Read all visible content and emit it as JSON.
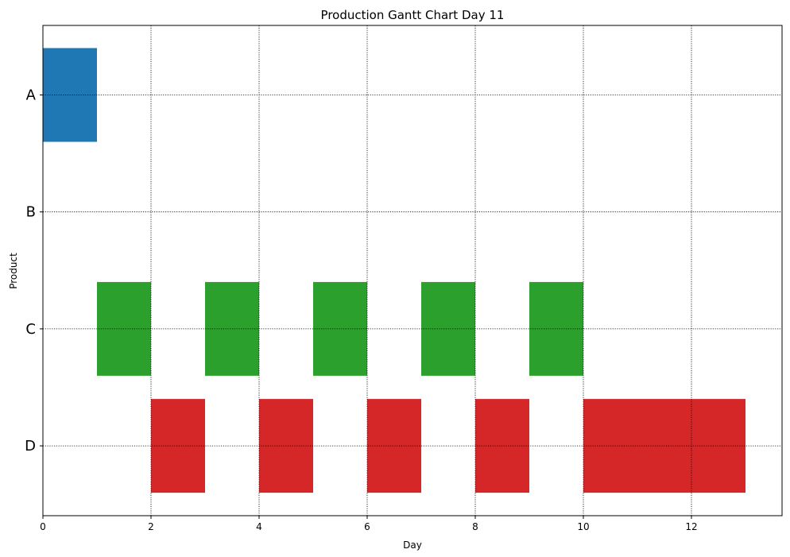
{
  "chart_data": {
    "type": "gantt",
    "title": "Production Gantt Chart Day 11",
    "xlabel": "Day",
    "ylabel": "Product",
    "xlim": [
      0,
      13.65
    ],
    "xticks": [
      0,
      2,
      4,
      6,
      8,
      10,
      12
    ],
    "categories": [
      "A",
      "B",
      "C",
      "D"
    ],
    "grid": true,
    "legend": "none",
    "series": [
      {
        "category": "A",
        "color": "#1f77b4",
        "tasks": [
          [
            0,
            1
          ]
        ]
      },
      {
        "category": "B",
        "color": "#ff7f0e",
        "tasks": []
      },
      {
        "category": "C",
        "color": "#2ca02c",
        "tasks": [
          [
            1,
            2
          ],
          [
            3,
            4
          ],
          [
            5,
            6
          ],
          [
            7,
            8
          ],
          [
            9,
            10
          ]
        ]
      },
      {
        "category": "D",
        "color": "#d62728",
        "tasks": [
          [
            2,
            3
          ],
          [
            4,
            5
          ],
          [
            6,
            7
          ],
          [
            8,
            9
          ],
          [
            10,
            13
          ]
        ]
      }
    ]
  }
}
